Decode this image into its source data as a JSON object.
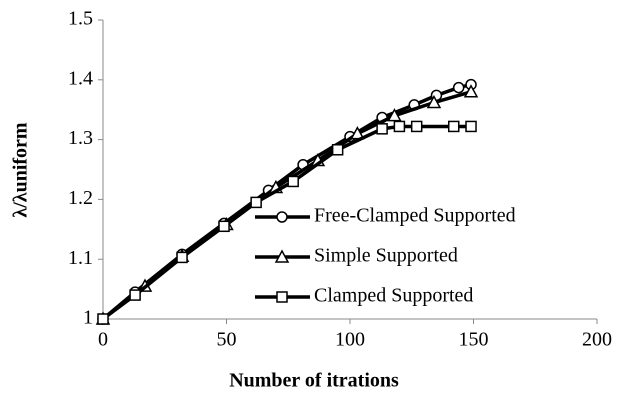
{
  "chart_data": {
    "type": "line",
    "x_label": "Number of itrations",
    "y_label": "λ/λuniform",
    "xlim": [
      0,
      200
    ],
    "xticks": [
      0,
      50,
      100,
      150,
      200
    ],
    "ylim": [
      1,
      1.5
    ],
    "yticks": [
      1,
      1.1,
      1.2,
      1.3,
      1.4,
      1.5
    ],
    "grid": false,
    "legend": "right",
    "series": [
      {
        "name": "Free-Clamped Supported",
        "color": "#000000",
        "marker": "circle",
        "x": [
          0,
          13,
          32,
          49,
          67,
          81,
          100,
          113,
          126,
          135,
          144,
          149
        ],
        "values": [
          1,
          1.045,
          1.108,
          1.16,
          1.215,
          1.258,
          1.305,
          1.337,
          1.358,
          1.374,
          1.387,
          1.392
        ]
      },
      {
        "name": "Simple Supported",
        "color": "#000000",
        "marker": "triangle",
        "x": [
          0,
          17,
          32,
          50,
          70,
          87,
          103,
          118,
          134,
          149
        ],
        "values": [
          1,
          1.055,
          1.105,
          1.158,
          1.22,
          1.265,
          1.31,
          1.34,
          1.362,
          1.38
        ]
      },
      {
        "name": "Clamped Supported",
        "color": "#000000",
        "marker": "square",
        "x": [
          0,
          13,
          32,
          49,
          62,
          77,
          95,
          113,
          120,
          127,
          142,
          149
        ],
        "values": [
          1,
          1.04,
          1.103,
          1.155,
          1.195,
          1.23,
          1.283,
          1.318,
          1.322,
          1.322,
          1.322,
          1.322
        ]
      }
    ]
  }
}
